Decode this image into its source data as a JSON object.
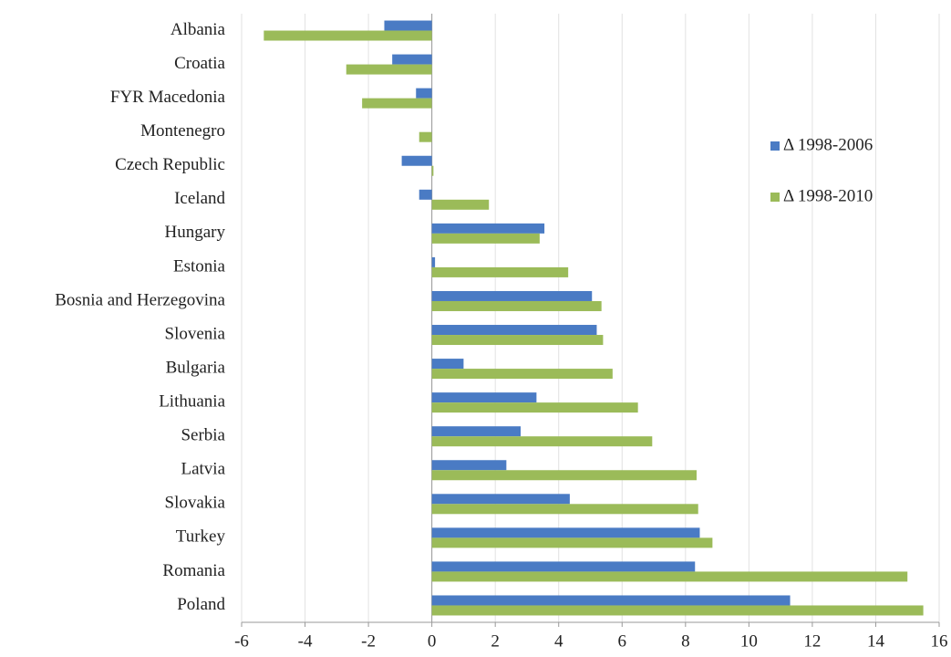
{
  "chart_data": {
    "type": "hbar",
    "categories": [
      "Albania",
      "Croatia",
      "FYR Macedonia",
      "Montenegro",
      "Czech Republic",
      "Iceland",
      "Hungary",
      "Estonia",
      "Bosnia and Herzegovina",
      "Slovenia",
      "Bulgaria",
      "Lithuania",
      "Serbia",
      "Latvia",
      "Slovakia",
      "Turkey",
      "Romania",
      "Poland"
    ],
    "series": [
      {
        "name": "Δ 1998-2006",
        "color": "#4a7bc4",
        "values": [
          -1.5,
          -1.25,
          -0.5,
          0,
          -0.95,
          -0.4,
          3.55,
          0.1,
          5.05,
          5.2,
          1.0,
          3.3,
          2.8,
          2.35,
          4.35,
          8.45,
          8.3,
          11.3
        ]
      },
      {
        "name": "Δ 1998-2010",
        "color": "#9bbb59",
        "values": [
          -5.3,
          -2.7,
          -2.2,
          -0.4,
          0.05,
          1.8,
          3.4,
          4.3,
          5.35,
          5.4,
          5.7,
          6.5,
          6.95,
          8.35,
          8.4,
          8.85,
          15.0,
          15.5
        ]
      }
    ],
    "xlim": [
      -6,
      16
    ],
    "xticks": [
      -6,
      -4,
      -2,
      0,
      2,
      4,
      6,
      8,
      10,
      12,
      14,
      16
    ],
    "grid": true,
    "legend": "right"
  }
}
